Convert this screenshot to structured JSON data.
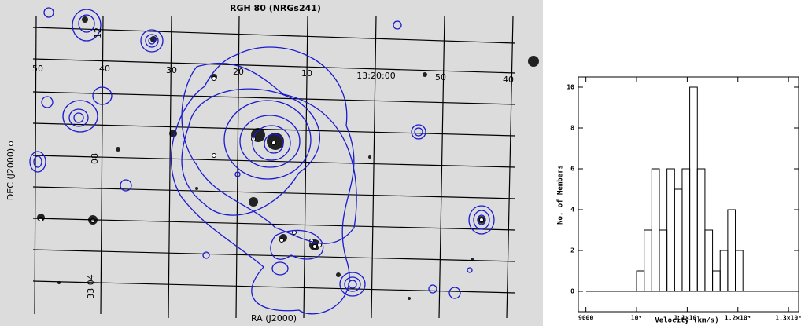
{
  "sky_panel": {
    "title": "RGH 80 (NRGs241)",
    "ra_labels": [
      "50",
      "40",
      "30",
      "20",
      "10",
      "13:20:00",
      "50",
      "40"
    ],
    "dec_labels": [
      "33 04",
      "08",
      "12"
    ],
    "xlabel": "RA (J2000)",
    "ylabel": "DEC (J2000)"
  },
  "chart_data": {
    "type": "histogram",
    "bins": [
      10000,
      10150,
      10300,
      10450,
      10600,
      10750,
      10900,
      11050,
      11200,
      11350,
      11500,
      11650,
      11800,
      11950,
      12100
    ],
    "values": [
      1,
      3,
      6,
      3,
      6,
      5,
      6,
      10,
      6,
      3,
      1,
      2,
      4,
      2
    ],
    "color": "#000000",
    "xlabel": "Velocity (km/s)",
    "ylabel": "No. of Members",
    "xlim": [
      8850,
      13200
    ],
    "ylim": [
      -1,
      10.5
    ],
    "xticks": [
      9000,
      {
        "value": 10000,
        "label": "10⁴"
      },
      {
        "value": 11000,
        "label": "1.1×10⁴"
      },
      {
        "value": 12000,
        "label": "1.2×10⁴"
      },
      {
        "value": 13000,
        "label": "1.3×10⁴"
      }
    ],
    "yticks": [
      0,
      2,
      4,
      6,
      8,
      10
    ]
  }
}
